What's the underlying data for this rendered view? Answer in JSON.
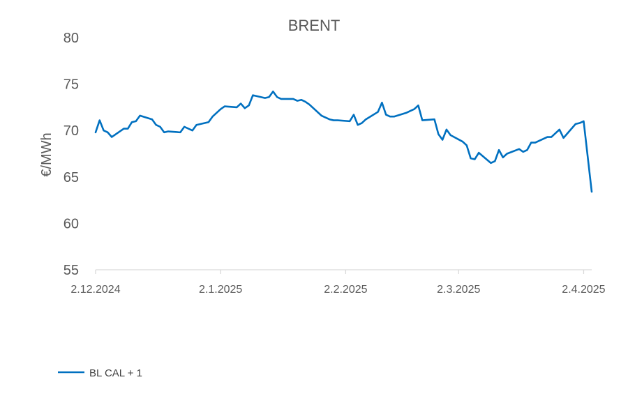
{
  "chart_data": {
    "type": "line",
    "title": "BRENT",
    "xlabel": "",
    "ylabel": "€/MWh",
    "ylim": [
      55,
      80
    ],
    "yticks": [
      55,
      60,
      65,
      70,
      75,
      80
    ],
    "xlim": [
      "2024-12-02",
      "2025-04-04"
    ],
    "xticks": [
      {
        "date": "2024-12-02",
        "label": "2.12.2024"
      },
      {
        "date": "2025-01-02",
        "label": "2.1.2025"
      },
      {
        "date": "2025-02-02",
        "label": "2.2.2025"
      },
      {
        "date": "2025-03-02",
        "label": "2.3.2025"
      },
      {
        "date": "2025-04-02",
        "label": "2.4.2025"
      }
    ],
    "grid": false,
    "legend_position": "bottom-left",
    "series": [
      {
        "name": "BL CAL + 1",
        "color": "#0070C0",
        "points": [
          [
            "2024-12-02",
            69.8
          ],
          [
            "2024-12-03",
            71.1
          ],
          [
            "2024-12-04",
            70.0
          ],
          [
            "2024-12-05",
            69.8
          ],
          [
            "2024-12-06",
            69.3
          ],
          [
            "2024-12-09",
            70.2
          ],
          [
            "2024-12-10",
            70.2
          ],
          [
            "2024-12-11",
            70.9
          ],
          [
            "2024-12-12",
            71.0
          ],
          [
            "2024-12-13",
            71.6
          ],
          [
            "2024-12-16",
            71.2
          ],
          [
            "2024-12-17",
            70.6
          ],
          [
            "2024-12-18",
            70.4
          ],
          [
            "2024-12-19",
            69.8
          ],
          [
            "2024-12-20",
            69.9
          ],
          [
            "2024-12-23",
            69.8
          ],
          [
            "2024-12-24",
            70.4
          ],
          [
            "2024-12-26",
            70.0
          ],
          [
            "2024-12-27",
            70.6
          ],
          [
            "2024-12-30",
            70.9
          ],
          [
            "2024-12-31",
            71.5
          ],
          [
            "2025-01-02",
            72.3
          ],
          [
            "2025-01-03",
            72.6
          ],
          [
            "2025-01-06",
            72.5
          ],
          [
            "2025-01-07",
            72.9
          ],
          [
            "2025-01-08",
            72.4
          ],
          [
            "2025-01-09",
            72.7
          ],
          [
            "2025-01-10",
            73.8
          ],
          [
            "2025-01-13",
            73.5
          ],
          [
            "2025-01-14",
            73.6
          ],
          [
            "2025-01-15",
            74.2
          ],
          [
            "2025-01-16",
            73.6
          ],
          [
            "2025-01-17",
            73.4
          ],
          [
            "2025-01-20",
            73.4
          ],
          [
            "2025-01-21",
            73.2
          ],
          [
            "2025-01-22",
            73.3
          ],
          [
            "2025-01-23",
            73.1
          ],
          [
            "2025-01-24",
            72.8
          ],
          [
            "2025-01-27",
            71.6
          ],
          [
            "2025-01-28",
            71.4
          ],
          [
            "2025-01-29",
            71.2
          ],
          [
            "2025-01-30",
            71.1
          ],
          [
            "2025-01-31",
            71.1
          ],
          [
            "2025-02-03",
            71.0
          ],
          [
            "2025-02-04",
            71.7
          ],
          [
            "2025-02-05",
            70.6
          ],
          [
            "2025-02-06",
            70.8
          ],
          [
            "2025-02-07",
            71.2
          ],
          [
            "2025-02-10",
            72.0
          ],
          [
            "2025-02-11",
            73.0
          ],
          [
            "2025-02-12",
            71.7
          ],
          [
            "2025-02-13",
            71.5
          ],
          [
            "2025-02-14",
            71.5
          ],
          [
            "2025-02-17",
            71.9
          ],
          [
            "2025-02-18",
            72.1
          ],
          [
            "2025-02-19",
            72.3
          ],
          [
            "2025-02-20",
            72.7
          ],
          [
            "2025-02-21",
            71.1
          ],
          [
            "2025-02-24",
            71.2
          ],
          [
            "2025-02-25",
            69.6
          ],
          [
            "2025-02-26",
            69.0
          ],
          [
            "2025-02-27",
            70.1
          ],
          [
            "2025-02-28",
            69.5
          ],
          [
            "2025-03-03",
            68.8
          ],
          [
            "2025-03-04",
            68.4
          ],
          [
            "2025-03-05",
            67.0
          ],
          [
            "2025-03-06",
            66.9
          ],
          [
            "2025-03-07",
            67.6
          ],
          [
            "2025-03-10",
            66.5
          ],
          [
            "2025-03-11",
            66.7
          ],
          [
            "2025-03-12",
            67.9
          ],
          [
            "2025-03-13",
            67.1
          ],
          [
            "2025-03-14",
            67.5
          ],
          [
            "2025-03-17",
            68.0
          ],
          [
            "2025-03-18",
            67.7
          ],
          [
            "2025-03-19",
            67.9
          ],
          [
            "2025-03-20",
            68.7
          ],
          [
            "2025-03-21",
            68.7
          ],
          [
            "2025-03-24",
            69.3
          ],
          [
            "2025-03-25",
            69.3
          ],
          [
            "2025-03-26",
            69.7
          ],
          [
            "2025-03-27",
            70.1
          ],
          [
            "2025-03-28",
            69.2
          ],
          [
            "2025-03-31",
            70.7
          ],
          [
            "2025-04-01",
            70.8
          ],
          [
            "2025-04-02",
            71.0
          ],
          [
            "2025-04-04",
            63.4
          ]
        ]
      }
    ]
  }
}
